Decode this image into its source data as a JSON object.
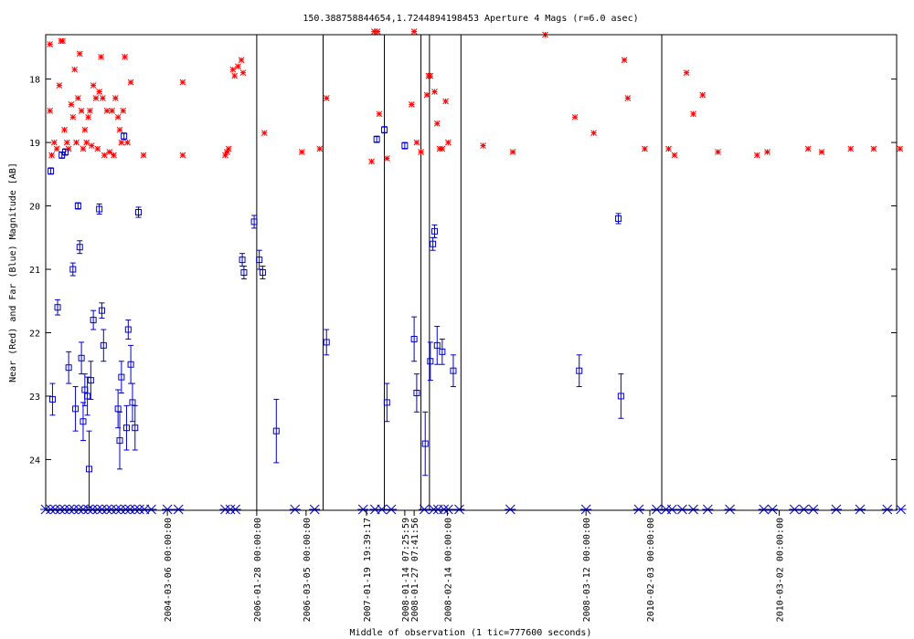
{
  "chart_data": {
    "type": "scatter",
    "title": "150.388758844654,1.7244894198453   Aperture 4 Mags (r=6.0 asec)",
    "xlabel": "Middle of observation (1 tic=777600 seconds)",
    "ylabel": "Near (Red) and Far (Blue) Magnitude [AB]",
    "x_axis": "observation index (non-uniform date axis)",
    "xlim": [
      0,
      100
    ],
    "ylim": [
      17.3,
      24.8
    ],
    "y_inverted": true,
    "grid": false,
    "yticks": [
      18,
      19,
      20,
      21,
      22,
      23,
      24
    ],
    "date_ticks": [
      {
        "x": 14.3,
        "label": "2004-03-06 00:00:00"
      },
      {
        "x": 24.8,
        "label": "2006-01-28 00:00:00"
      },
      {
        "x": 30.6,
        "label": "2006-03-05 00:00:00"
      },
      {
        "x": 37.7,
        "label": "2007-01-19 19:39:17"
      },
      {
        "x": 42.2,
        "label": "2008-01-14 07:25:59"
      },
      {
        "x": 43.3,
        "label": "2008-01-27 07:41:56"
      },
      {
        "x": 47.2,
        "label": "2008-02-14 00:00:00"
      },
      {
        "x": 63.5,
        "label": "2008-03-12 00:00:00"
      },
      {
        "x": 71.0,
        "label": "2010-02-03 00:00:00"
      },
      {
        "x": 86.2,
        "label": "2010-03-02 00:00:00"
      }
    ],
    "separators": [
      24.8,
      32.6,
      39.8,
      44.1,
      45.1,
      48.8,
      72.4
    ],
    "series": [
      {
        "color": "#ff0000",
        "marker": "asterisk",
        "points": [
          [
            0.5,
            17.45
          ],
          [
            0.5,
            18.5
          ],
          [
            0.7,
            19.2
          ],
          [
            1.0,
            19.0
          ],
          [
            1.3,
            19.1
          ],
          [
            1.6,
            18.1
          ],
          [
            1.8,
            17.4
          ],
          [
            2.0,
            17.4
          ],
          [
            2.2,
            18.8
          ],
          [
            2.5,
            19.0
          ],
          [
            2.7,
            19.1
          ],
          [
            3.0,
            18.4
          ],
          [
            3.2,
            18.6
          ],
          [
            3.4,
            17.85
          ],
          [
            3.6,
            19.0
          ],
          [
            3.8,
            18.3
          ],
          [
            4.0,
            17.6
          ],
          [
            4.2,
            18.5
          ],
          [
            4.4,
            19.1
          ],
          [
            4.6,
            18.8
          ],
          [
            4.8,
            19.0
          ],
          [
            5.0,
            18.6
          ],
          [
            5.2,
            18.5
          ],
          [
            5.4,
            19.05
          ],
          [
            5.6,
            18.1
          ],
          [
            5.9,
            18.3
          ],
          [
            6.1,
            19.1
          ],
          [
            6.3,
            18.2
          ],
          [
            6.5,
            17.65
          ],
          [
            6.7,
            18.3
          ],
          [
            6.9,
            19.2
          ],
          [
            7.2,
            18.5
          ],
          [
            7.5,
            19.15
          ],
          [
            7.8,
            18.5
          ],
          [
            8.0,
            19.2
          ],
          [
            8.2,
            18.3
          ],
          [
            8.5,
            18.6
          ],
          [
            8.7,
            18.8
          ],
          [
            8.9,
            19.0
          ],
          [
            9.1,
            18.5
          ],
          [
            9.3,
            17.65
          ],
          [
            9.6,
            19.0
          ],
          [
            10.0,
            18.05
          ],
          [
            11.5,
            19.2
          ],
          [
            16.1,
            19.2
          ],
          [
            16.1,
            18.05
          ],
          [
            21.1,
            19.2
          ],
          [
            21.3,
            19.15
          ],
          [
            21.5,
            19.1
          ],
          [
            22.0,
            17.85
          ],
          [
            22.2,
            17.95
          ],
          [
            22.6,
            17.8
          ],
          [
            23.0,
            17.7
          ],
          [
            23.2,
            17.9
          ],
          [
            25.7,
            18.85
          ],
          [
            30.1,
            19.15
          ],
          [
            32.2,
            19.1
          ],
          [
            33.0,
            18.3
          ],
          [
            38.3,
            19.3
          ],
          [
            38.6,
            17.25
          ],
          [
            39.0,
            17.25
          ],
          [
            39.2,
            18.55
          ],
          [
            40.1,
            19.25
          ],
          [
            43.0,
            18.4
          ],
          [
            43.3,
            17.25
          ],
          [
            43.6,
            19.0
          ],
          [
            44.1,
            19.15
          ],
          [
            44.8,
            18.25
          ],
          [
            45.0,
            17.95
          ],
          [
            45.2,
            17.95
          ],
          [
            45.7,
            18.2
          ],
          [
            46.0,
            18.7
          ],
          [
            46.3,
            19.1
          ],
          [
            46.6,
            19.1
          ],
          [
            47.0,
            18.35
          ],
          [
            47.3,
            19.0
          ],
          [
            51.4,
            19.05
          ],
          [
            54.9,
            19.15
          ],
          [
            58.7,
            17.3
          ],
          [
            62.2,
            18.6
          ],
          [
            64.4,
            18.85
          ],
          [
            68.0,
            17.7
          ],
          [
            68.4,
            18.3
          ],
          [
            70.4,
            19.1
          ],
          [
            73.2,
            19.1
          ],
          [
            73.9,
            19.2
          ],
          [
            75.3,
            17.9
          ],
          [
            76.1,
            18.55
          ],
          [
            77.2,
            18.25
          ],
          [
            79.0,
            19.15
          ],
          [
            83.6,
            19.2
          ],
          [
            84.8,
            19.15
          ],
          [
            89.6,
            19.1
          ],
          [
            91.2,
            19.15
          ],
          [
            94.6,
            19.1
          ],
          [
            97.3,
            19.1
          ],
          [
            100.4,
            19.1
          ]
        ]
      },
      {
        "color": "#0000cc",
        "marker": "square",
        "points": [
          [
            0.6,
            19.45,
            0.05
          ],
          [
            0.8,
            23.05,
            0.25
          ],
          [
            1.4,
            21.6,
            0.12
          ],
          [
            1.9,
            19.2,
            0.05
          ],
          [
            2.3,
            19.15,
            0.05
          ],
          [
            2.7,
            22.55,
            0.25
          ],
          [
            3.2,
            21.0,
            0.1
          ],
          [
            3.5,
            23.2,
            0.35
          ],
          [
            3.8,
            20.0,
            0.05
          ],
          [
            4.0,
            20.65,
            0.1
          ],
          [
            4.2,
            22.4,
            0.25
          ],
          [
            4.4,
            23.4,
            0.3
          ],
          [
            4.6,
            22.9,
            0.25
          ],
          [
            4.9,
            23.0,
            0.3
          ],
          [
            5.1,
            24.15,
            0.6
          ],
          [
            5.3,
            22.75,
            0.3
          ],
          [
            5.6,
            21.8,
            0.15
          ],
          [
            6.3,
            20.05,
            0.08
          ],
          [
            6.6,
            21.65,
            0.12
          ],
          [
            6.8,
            22.2,
            0.25
          ],
          [
            8.5,
            23.2,
            0.3
          ],
          [
            8.7,
            23.7,
            0.45
          ],
          [
            8.9,
            22.7,
            0.25
          ],
          [
            9.2,
            18.9,
            0.05
          ],
          [
            9.5,
            23.5,
            0.35
          ],
          [
            9.7,
            21.95,
            0.15
          ],
          [
            10.0,
            22.5,
            0.3
          ],
          [
            10.2,
            23.1,
            0.3
          ],
          [
            10.5,
            23.5,
            0.35
          ],
          [
            10.9,
            20.1,
            0.08
          ],
          [
            23.1,
            20.85,
            0.1
          ],
          [
            23.3,
            21.05,
            0.1
          ],
          [
            24.5,
            20.25,
            0.1
          ],
          [
            25.1,
            20.85,
            0.15
          ],
          [
            25.5,
            21.05,
            0.1
          ],
          [
            27.1,
            23.55,
            0.5
          ],
          [
            33.0,
            22.15,
            0.2
          ],
          [
            38.9,
            18.95,
            0.05
          ],
          [
            39.8,
            18.8,
            0.05
          ],
          [
            42.2,
            19.05,
            0.05
          ],
          [
            40.1,
            23.1,
            0.3
          ],
          [
            43.3,
            22.1,
            0.35
          ],
          [
            43.6,
            22.95,
            0.3
          ],
          [
            44.6,
            23.75,
            0.5
          ],
          [
            45.2,
            22.45,
            0.3
          ],
          [
            45.5,
            20.6,
            0.1
          ],
          [
            45.7,
            20.4,
            0.1
          ],
          [
            46.0,
            22.2,
            0.3
          ],
          [
            46.6,
            22.3,
            0.2
          ],
          [
            47.9,
            22.6,
            0.25
          ],
          [
            62.7,
            22.6,
            0.25
          ],
          [
            67.3,
            20.2,
            0.08
          ],
          [
            67.6,
            23.0,
            0.35
          ]
        ]
      }
    ],
    "baseline_markers": [
      0,
      0.6,
      1.1,
      1.7,
      2.2,
      2.8,
      3.3,
      3.9,
      4.4,
      5.0,
      5.5,
      6.1,
      6.6,
      7.2,
      7.7,
      8.3,
      8.8,
      9.4,
      9.9,
      10.5,
      11.0,
      11.6,
      12.4,
      14.3,
      15.6,
      21.1,
      21.7,
      22.3,
      29.3,
      31.6,
      37.3,
      38.7,
      39.5,
      40.6,
      44.5,
      45.6,
      46.1,
      46.8,
      47.3,
      48.6,
      54.6,
      63.5,
      69.7,
      71.8,
      72.9,
      73.6,
      74.8,
      76.1,
      77.8,
      80.4,
      84.4,
      85.4,
      88.0,
      89.1,
      90.2,
      92.9,
      95.7,
      98.9,
      100.5
    ]
  }
}
